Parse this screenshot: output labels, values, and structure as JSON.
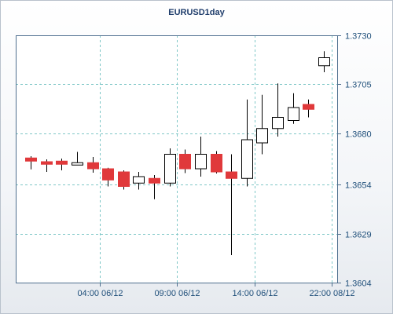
{
  "chart_data": {
    "type": "candlestick",
    "title": "EURUSD1day",
    "xlabel": "",
    "ylabel": "",
    "ylim": [
      1.3604,
      1.373
    ],
    "y_ticks": [
      "1.3730",
      "1.3705",
      "1.3680",
      "1.3654",
      "1.3629",
      "1.3604"
    ],
    "y_tick_values": [
      1.373,
      1.3705,
      1.368,
      1.3654,
      1.3629,
      1.3604
    ],
    "x_ticks": [
      "04:00 06/12",
      "09:00 06/12",
      "14:00 06/12",
      "22:00 08/12"
    ],
    "x_tick_index": [
      4.5,
      9.5,
      14.5,
      19.5
    ],
    "grid": true,
    "up_color": "#ffffff",
    "down_color": "#e0393b",
    "candles": [
      {
        "open": 1.36675,
        "high": 1.36684,
        "low": 1.36617,
        "close": 1.36659
      },
      {
        "open": 1.36656,
        "high": 1.36668,
        "low": 1.36604,
        "close": 1.36643
      },
      {
        "open": 1.36659,
        "high": 1.36672,
        "low": 1.36612,
        "close": 1.36643
      },
      {
        "open": 1.36643,
        "high": 1.36706,
        "low": 1.36639,
        "close": 1.36651
      },
      {
        "open": 1.36651,
        "high": 1.3668,
        "low": 1.366,
        "close": 1.3662
      },
      {
        "open": 1.3662,
        "high": 1.36625,
        "low": 1.3653,
        "close": 1.36563
      },
      {
        "open": 1.36604,
        "high": 1.36612,
        "low": 1.36514,
        "close": 1.3653
      },
      {
        "open": 1.36547,
        "high": 1.36604,
        "low": 1.36514,
        "close": 1.3658
      },
      {
        "open": 1.36571,
        "high": 1.36588,
        "low": 1.36465,
        "close": 1.36547
      },
      {
        "open": 1.36547,
        "high": 1.36724,
        "low": 1.3653,
        "close": 1.36694
      },
      {
        "open": 1.36694,
        "high": 1.36718,
        "low": 1.36598,
        "close": 1.3662
      },
      {
        "open": 1.3662,
        "high": 1.36784,
        "low": 1.3658,
        "close": 1.36694
      },
      {
        "open": 1.36694,
        "high": 1.3671,
        "low": 1.36596,
        "close": 1.36604
      },
      {
        "open": 1.36604,
        "high": 1.36694,
        "low": 1.3618,
        "close": 1.36571
      },
      {
        "open": 1.36571,
        "high": 1.36973,
        "low": 1.3653,
        "close": 1.36768
      },
      {
        "open": 1.36752,
        "high": 1.36997,
        "low": 1.36694,
        "close": 1.36825
      },
      {
        "open": 1.36825,
        "high": 1.37055,
        "low": 1.36784,
        "close": 1.36882
      },
      {
        "open": 1.36866,
        "high": 1.37005,
        "low": 1.36849,
        "close": 1.36932
      },
      {
        "open": 1.36948,
        "high": 1.36973,
        "low": 1.36882,
        "close": 1.36923
      },
      {
        "open": 1.37145,
        "high": 1.37219,
        "low": 1.37112,
        "close": 1.37186
      }
    ]
  }
}
